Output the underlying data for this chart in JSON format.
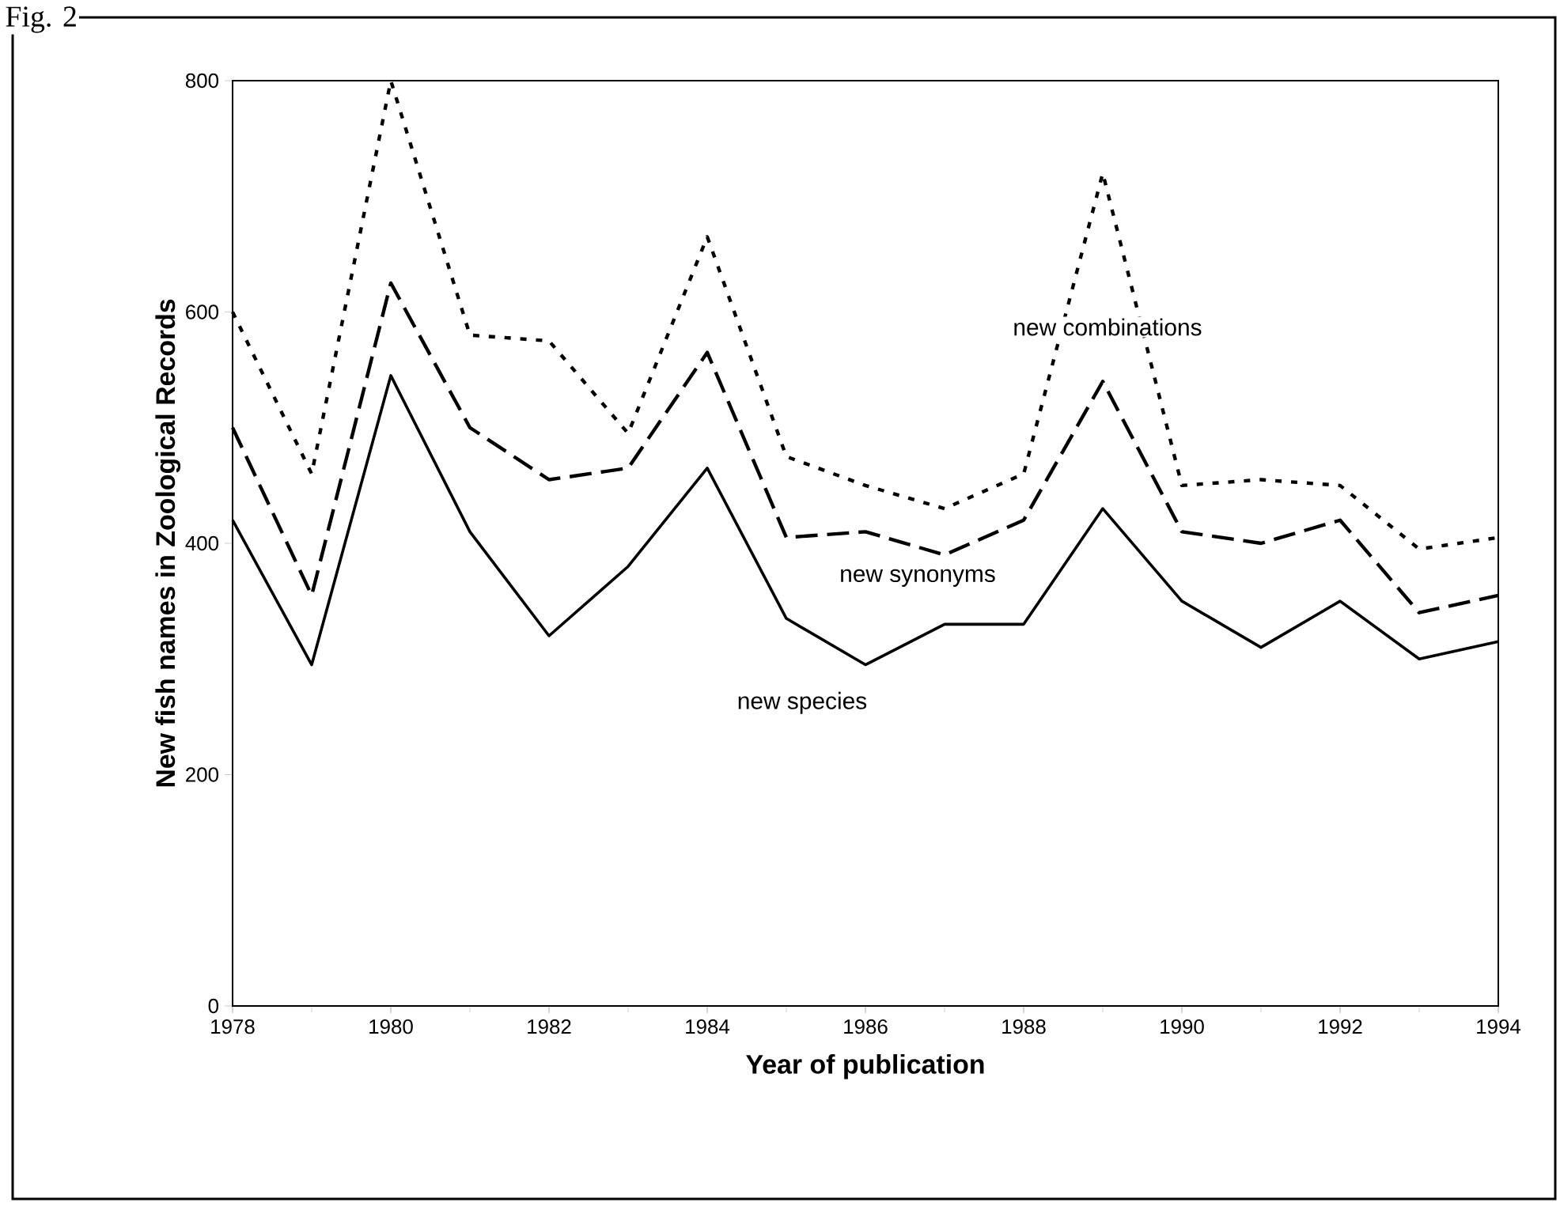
{
  "chart_data": {
    "type": "line",
    "xlabel": "Year of publication",
    "ylabel": "New fish names in Zoological Records",
    "annotations": [
      "Fig. 2"
    ],
    "x": [
      1978,
      1979,
      1980,
      1981,
      1982,
      1983,
      1984,
      1985,
      1986,
      1987,
      1988,
      1989,
      1990,
      1991,
      1992,
      1993,
      1994
    ],
    "series": [
      {
        "name": "new species",
        "color": "#000000",
        "line_style": "solid",
        "values": [
          420,
          295,
          545,
          410,
          320,
          380,
          465,
          335,
          295,
          330,
          330,
          430,
          350,
          310,
          350,
          300,
          315
        ]
      },
      {
        "name": "new synonyms",
        "color": "#000000",
        "line_style": "dashed",
        "values": [
          500,
          355,
          625,
          500,
          455,
          465,
          565,
          405,
          410,
          390,
          420,
          540,
          410,
          400,
          420,
          340,
          355
        ]
      },
      {
        "name": "new combinations",
        "color": "#000000",
        "line_style": "dotted",
        "values": [
          600,
          460,
          800,
          580,
          575,
          495,
          665,
          475,
          450,
          430,
          460,
          720,
          450,
          455,
          450,
          395,
          405
        ]
      }
    ],
    "xlim": [
      1978,
      1994
    ],
    "xticks": [
      1978,
      1980,
      1982,
      1984,
      1986,
      1988,
      1990,
      1992,
      1994
    ],
    "ylim": [
      0,
      800
    ],
    "yticks": [
      0,
      200,
      400,
      600,
      800
    ],
    "grid": false,
    "legend": false,
    "marker": "none"
  }
}
